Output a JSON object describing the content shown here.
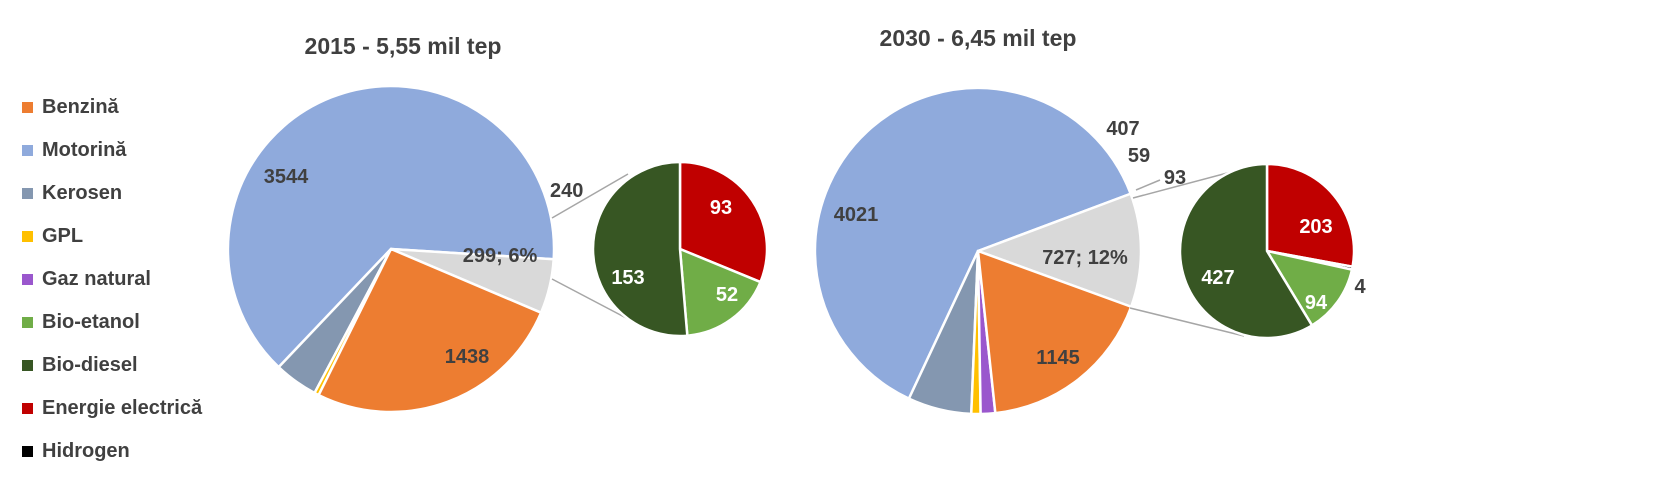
{
  "legend": [
    {
      "label": "Benzină",
      "color": "#ED7D31"
    },
    {
      "label": "Motorină",
      "color": "#8FAADC"
    },
    {
      "label": "Kerosen",
      "color": "#8497B0"
    },
    {
      "label": "GPL",
      "color": "#FFC000"
    },
    {
      "label": "Gaz natural",
      "color": "#9A57CD"
    },
    {
      "label": "Bio-etanol",
      "color": "#70AD47"
    },
    {
      "label": "Bio-diesel",
      "color": "#375623"
    },
    {
      "label": "Energie electrică",
      "color": "#C00000"
    },
    {
      "label": "Hidrogen",
      "color": "#000000"
    }
  ],
  "chart_data": [
    {
      "type": "pie",
      "title": "2015 - 5,55 mil tep",
      "main_slices": [
        {
          "name": "Motorină",
          "value": 3544,
          "label": "3544",
          "color": "#8FAADC"
        },
        {
          "name": "Kerosen",
          "value": 240,
          "label": "240",
          "color": "#8497B0"
        },
        {
          "name": "GPL",
          "value": 25,
          "label": "",
          "color": "#FFC000"
        },
        {
          "name": "Other",
          "value": 299,
          "label": "299; 6%",
          "color": "#D9D9D9"
        },
        {
          "name": "Benzină",
          "value": 1438,
          "label": "1438",
          "color": "#ED7D31"
        }
      ],
      "sub_slices": [
        {
          "name": "Energie electrică",
          "value": 93,
          "label": "93",
          "color": "#C00000"
        },
        {
          "name": "Bio-etanol",
          "value": 52,
          "label": "52",
          "color": "#70AD47"
        },
        {
          "name": "Bio-diesel",
          "value": 153,
          "label": "153",
          "color": "#375623"
        }
      ]
    },
    {
      "type": "pie",
      "title": "2030 - 6,45 mil tep",
      "main_slices": [
        {
          "name": "Motorină",
          "value": 4021,
          "label": "4021",
          "color": "#8FAADC"
        },
        {
          "name": "Kerosen",
          "value": 407,
          "label": "407",
          "color": "#8497B0"
        },
        {
          "name": "GPL",
          "value": 59,
          "label": "59",
          "color": "#FFC000"
        },
        {
          "name": "Gaz natural",
          "value": 93,
          "label": "93",
          "color": "#9A57CD"
        },
        {
          "name": "Other",
          "value": 727,
          "label": "727; 12%",
          "color": "#D9D9D9"
        },
        {
          "name": "Benzină",
          "value": 1145,
          "label": "1145",
          "color": "#ED7D31"
        }
      ],
      "sub_slices": [
        {
          "name": "Energie electrică",
          "value": 203,
          "label": "203",
          "color": "#C00000"
        },
        {
          "name": "Hidrogen",
          "value": 4,
          "label": "4",
          "color": "#000000"
        },
        {
          "name": "Bio-etanol",
          "value": 94,
          "label": "94",
          "color": "#70AD47"
        },
        {
          "name": "Bio-diesel",
          "value": 427,
          "label": "427",
          "color": "#375623"
        }
      ]
    }
  ]
}
